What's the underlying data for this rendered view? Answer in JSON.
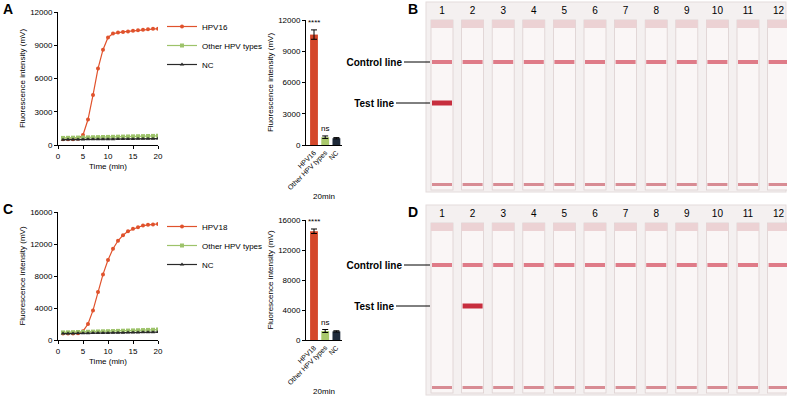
{
  "panel_labels": [
    "A",
    "B",
    "C",
    "D"
  ],
  "chart_data": [
    {
      "type": "line",
      "x": [
        1,
        2,
        3,
        4,
        5,
        6,
        7,
        8,
        9,
        10,
        11,
        12,
        13,
        14,
        15,
        16,
        17,
        18,
        19,
        20
      ],
      "series": [
        {
          "name": "HPV16",
          "color": "#e0522c",
          "marker": "circle",
          "values": [
            520,
            520,
            530,
            560,
            900,
            2300,
            4500,
            6900,
            8600,
            9700,
            10050,
            10150,
            10200,
            10250,
            10300,
            10350,
            10400,
            10450,
            10480,
            10500
          ]
        },
        {
          "name": "Other HPV types",
          "color": "#9dc36a",
          "marker": "square",
          "values": [
            640,
            650,
            660,
            670,
            680,
            690,
            700,
            710,
            720,
            730,
            740,
            750,
            760,
            770,
            780,
            790,
            800,
            810,
            820,
            830
          ]
        },
        {
          "name": "NC",
          "color": "#2a2a2a",
          "marker": "triangle-up",
          "values": [
            480,
            490,
            490,
            500,
            500,
            510,
            510,
            520,
            520,
            530,
            530,
            540,
            540,
            550,
            550,
            560,
            560,
            570,
            570,
            580
          ]
        }
      ],
      "xlim": [
        0,
        20
      ],
      "xticks": [
        0,
        5,
        10,
        15,
        20
      ],
      "ylim": [
        0,
        12000
      ],
      "yticks": [
        0,
        3000,
        6000,
        9000,
        12000
      ],
      "x_label": "Time (min)",
      "y_label": "Fluorescence intensity (mV)",
      "legend": "right",
      "grid": false
    },
    {
      "type": "bar",
      "categories": [
        "HPV16",
        "Other HPV types",
        "NC"
      ],
      "values": [
        10600,
        750,
        650
      ],
      "errors": [
        450,
        120,
        60
      ],
      "colors": [
        "#d4472a",
        "#a9c86c",
        "#1e2a3a"
      ],
      "ylim": [
        0,
        12000
      ],
      "yticks": [
        0,
        3000,
        6000,
        9000,
        12000
      ],
      "x_label": "20min",
      "y_label": "Fluorescence intensity (mV)",
      "annotations": [
        {
          "category": "HPV16",
          "text": "****"
        },
        {
          "category": "Other HPV types",
          "text": "ns"
        }
      ],
      "grid": false
    },
    {
      "type": "line",
      "x": [
        1,
        2,
        3,
        4,
        5,
        6,
        7,
        8,
        9,
        10,
        11,
        12,
        13,
        14,
        15,
        16,
        17,
        18,
        19,
        20
      ],
      "series": [
        {
          "name": "HPV18",
          "color": "#e0522c",
          "marker": "circle",
          "values": [
            800,
            800,
            820,
            850,
            1100,
            2000,
            3700,
            6000,
            8200,
            10000,
            11400,
            12400,
            13100,
            13600,
            13900,
            14100,
            14300,
            14400,
            14450,
            14500
          ]
        },
        {
          "name": "Other HPV types",
          "color": "#9dc36a",
          "marker": "square",
          "values": [
            950,
            960,
            980,
            1000,
            1010,
            1030,
            1050,
            1070,
            1090,
            1100,
            1120,
            1140,
            1160,
            1180,
            1200,
            1220,
            1240,
            1260,
            1280,
            1300
          ]
        },
        {
          "name": "NC",
          "color": "#2a2a2a",
          "marker": "triangle-up",
          "values": [
            800,
            810,
            820,
            830,
            840,
            850,
            860,
            870,
            880,
            890,
            900,
            910,
            920,
            930,
            940,
            950,
            960,
            970,
            980,
            990
          ]
        }
      ],
      "xlim": [
        0,
        20
      ],
      "xticks": [
        0,
        5,
        10,
        15,
        20
      ],
      "ylim": [
        0,
        16000
      ],
      "yticks": [
        0,
        4000,
        8000,
        12000,
        16000
      ],
      "x_label": "Time (min)",
      "y_label": "Fluorescence intensity (mV)",
      "legend": "right",
      "grid": false
    },
    {
      "type": "bar",
      "categories": [
        "HPV18",
        "Other HPV types",
        "NC"
      ],
      "values": [
        14500,
        1200,
        1150
      ],
      "errors": [
        300,
        200,
        80
      ],
      "colors": [
        "#d4472a",
        "#a9c86c",
        "#1e2a3a"
      ],
      "ylim": [
        0,
        16000
      ],
      "yticks": [
        0,
        4000,
        8000,
        12000,
        16000
      ],
      "x_label": "20min",
      "y_label": "Fluorescence intensity (mV)",
      "annotations": [
        {
          "category": "HPV18",
          "text": "****"
        },
        {
          "category": "Other HPV types",
          "text": "ns"
        }
      ],
      "grid": false
    }
  ],
  "strips": [
    {
      "lanes": [
        1,
        2,
        3,
        4,
        5,
        6,
        7,
        8,
        9,
        10,
        11,
        12
      ],
      "control_line": [
        true,
        true,
        true,
        true,
        true,
        true,
        true,
        true,
        true,
        true,
        true,
        true
      ],
      "test_line": [
        true,
        false,
        false,
        false,
        false,
        false,
        false,
        false,
        false,
        false,
        false,
        false
      ],
      "control_label": "Control line",
      "test_label": "Test line"
    },
    {
      "lanes": [
        1,
        2,
        3,
        4,
        5,
        6,
        7,
        8,
        9,
        10,
        11,
        12
      ],
      "control_line": [
        true,
        true,
        true,
        true,
        true,
        true,
        true,
        true,
        true,
        true,
        true,
        true
      ],
      "test_line": [
        false,
        true,
        false,
        false,
        false,
        false,
        false,
        false,
        false,
        false,
        false,
        false
      ],
      "control_label": "Control line",
      "test_label": "Test line"
    }
  ]
}
